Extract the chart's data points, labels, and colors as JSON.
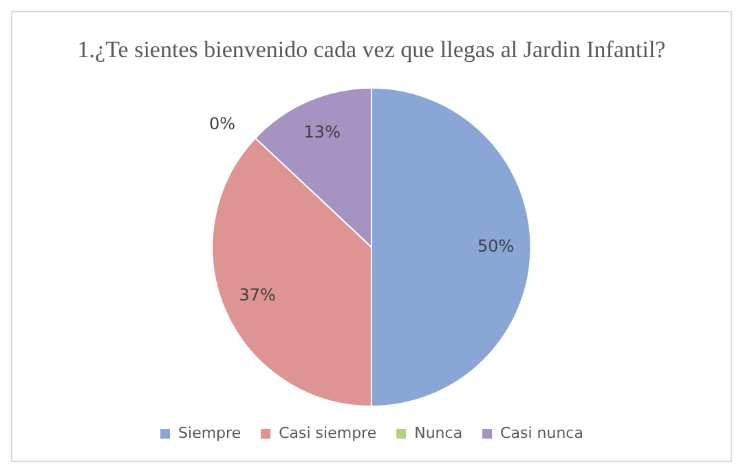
{
  "chart_data": {
    "type": "pie",
    "title": "1.¿Te sientes bienvenido cada vez que llegas al Jardin Infantil?",
    "categories": [
      "Siempre",
      "Casi siempre",
      "Nunca",
      "Casi nunca"
    ],
    "values": [
      50,
      37,
      0,
      13
    ],
    "colors": [
      "#8aa6d6",
      "#de9492",
      "#b5cf83",
      "#a594c2"
    ],
    "value_labels": [
      "50%",
      "37%",
      "0%",
      "13%"
    ],
    "legend": "bottom"
  }
}
